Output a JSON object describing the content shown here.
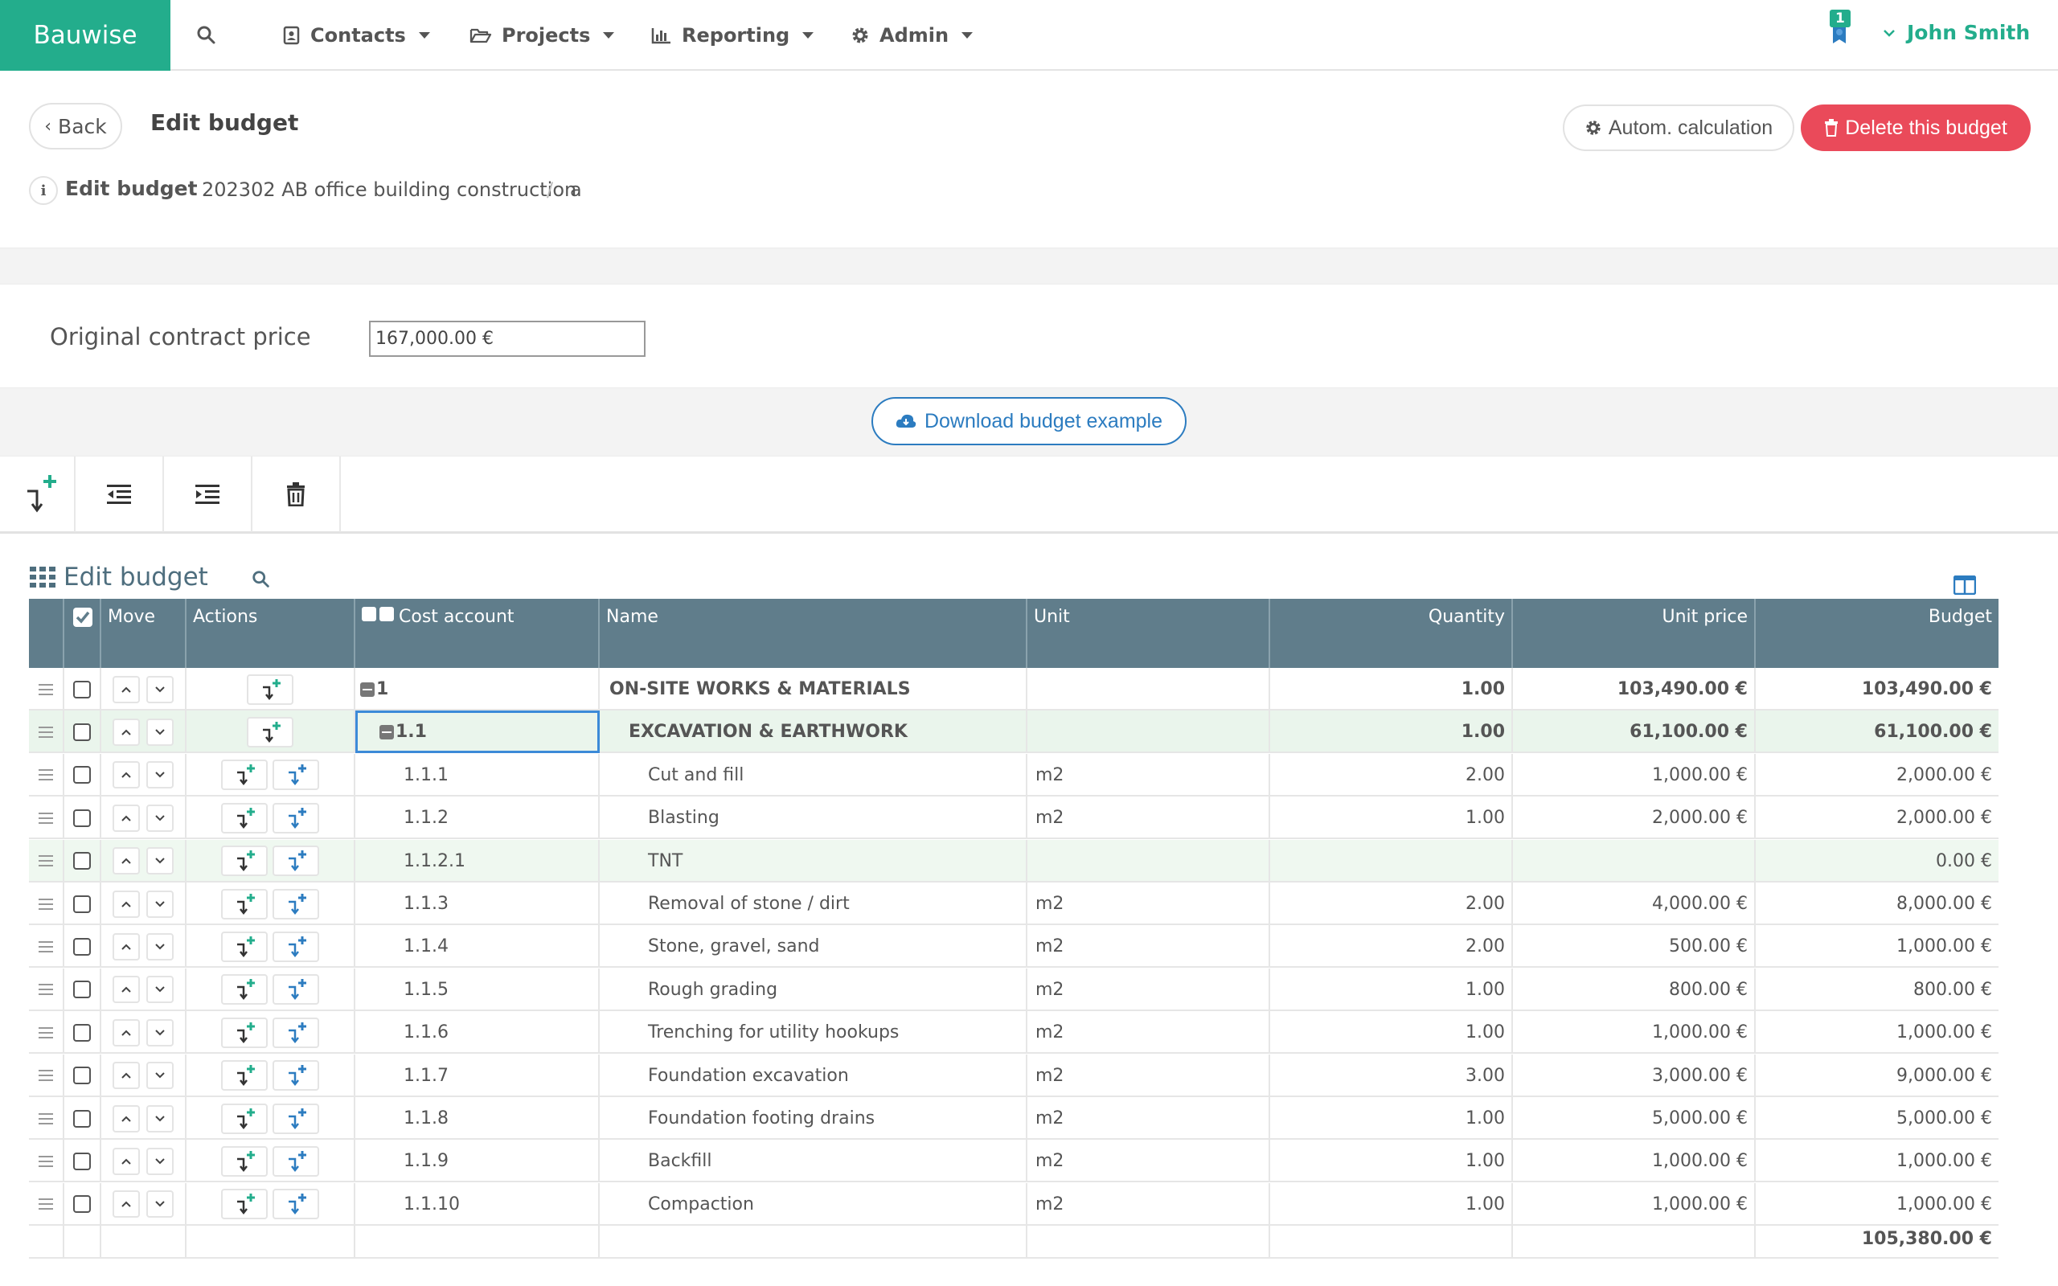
{
  "nav": {
    "brand": "Bauwise",
    "items": [
      {
        "label": "Contacts",
        "icon": "contacts-icon"
      },
      {
        "label": "Projects",
        "icon": "folder-open-icon"
      },
      {
        "label": "Reporting",
        "icon": "bar-chart-icon"
      },
      {
        "label": "Admin",
        "icon": "gear-icon"
      }
    ],
    "notification_count": "1",
    "user_name": "John Smith"
  },
  "header": {
    "back_label": "Back",
    "title": "Edit budget",
    "auto_calc_label": "Autom. calculation",
    "delete_label": "Delete this budget"
  },
  "breadcrumb": {
    "label": "Edit budget",
    "project": "202302 AB office building construction",
    "separator": "/",
    "sub": "a"
  },
  "contract": {
    "label": "Original contract price",
    "value": "167,000.00 €"
  },
  "download_label": "Download budget example",
  "grid": {
    "title": "Edit budget",
    "columns": {
      "move": "Move",
      "actions": "Actions",
      "cost_account": "Cost account",
      "name": "Name",
      "unit": "Unit",
      "quantity": "Quantity",
      "unit_price": "Unit price",
      "budget": "Budget"
    },
    "rows": [
      {
        "code": "1",
        "name": "ON-SITE WORKS & MATERIALS",
        "unit": "",
        "qty": "1.00",
        "price": "103,490.00 €",
        "budget": "103,490.00 €"
      },
      {
        "code": "1.1",
        "name": "EXCAVATION & EARTHWORK",
        "unit": "",
        "qty": "1.00",
        "price": "61,100.00 €",
        "budget": "61,100.00 €"
      },
      {
        "code": "1.1.1",
        "name": "Cut and fill",
        "unit": "m2",
        "qty": "2.00",
        "price": "1,000.00 €",
        "budget": "2,000.00 €"
      },
      {
        "code": "1.1.2",
        "name": "Blasting",
        "unit": "m2",
        "qty": "1.00",
        "price": "2,000.00 €",
        "budget": "2,000.00 €"
      },
      {
        "code": "1.1.2.1",
        "name": "TNT",
        "unit": "",
        "qty": "",
        "price": "",
        "budget": "0.00 €"
      },
      {
        "code": "1.1.3",
        "name": "Removal of stone / dirt",
        "unit": "m2",
        "qty": "2.00",
        "price": "4,000.00 €",
        "budget": "8,000.00 €"
      },
      {
        "code": "1.1.4",
        "name": "Stone, gravel, sand",
        "unit": "m2",
        "qty": "2.00",
        "price": "500.00 €",
        "budget": "1,000.00 €"
      },
      {
        "code": "1.1.5",
        "name": "Rough grading",
        "unit": "m2",
        "qty": "1.00",
        "price": "800.00 €",
        "budget": "800.00 €"
      },
      {
        "code": "1.1.6",
        "name": "Trenching for utility hookups",
        "unit": "m2",
        "qty": "1.00",
        "price": "1,000.00 €",
        "budget": "1,000.00 €"
      },
      {
        "code": "1.1.7",
        "name": "Foundation excavation",
        "unit": "m2",
        "qty": "3.00",
        "price": "3,000.00 €",
        "budget": "9,000.00 €"
      },
      {
        "code": "1.1.8",
        "name": "Foundation footing drains",
        "unit": "m2",
        "qty": "1.00",
        "price": "5,000.00 €",
        "budget": "5,000.00 €"
      },
      {
        "code": "1.1.9",
        "name": "Backfill",
        "unit": "m2",
        "qty": "1.00",
        "price": "1,000.00 €",
        "budget": "1,000.00 €"
      },
      {
        "code": "1.1.10",
        "name": "Compaction",
        "unit": "m2",
        "qty": "1.00",
        "price": "1,000.00 €",
        "budget": "1,000.00 €"
      }
    ],
    "total": "105,380.00 €"
  },
  "colors": {
    "brand": "#23ad8c",
    "header_bg": "#607d8b",
    "danger": "#ea4a5a",
    "link": "#2c7cc0"
  }
}
